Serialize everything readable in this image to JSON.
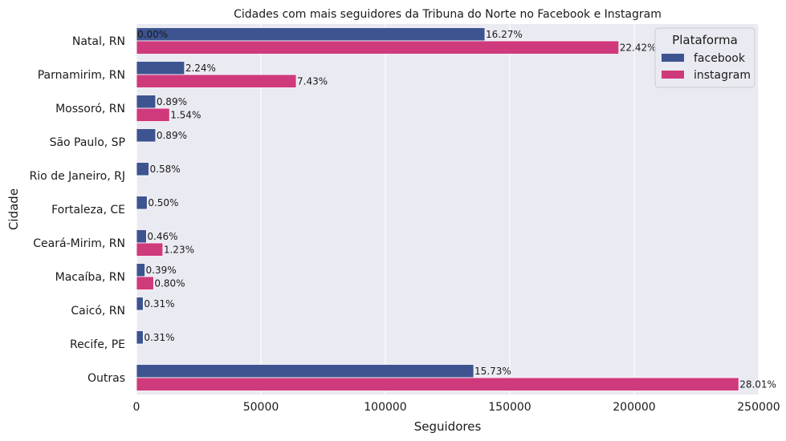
{
  "chart_data": {
    "type": "bar",
    "orientation": "horizontal",
    "title": "Cidades com mais seguidores da Tribuna do Norte no Facebook e Instagram",
    "xlabel": "Seguidores",
    "ylabel": "Cidade",
    "xlim": [
      0,
      250000
    ],
    "xticks": [
      0,
      50000,
      100000,
      150000,
      200000,
      250000
    ],
    "xtick_labels": [
      "0",
      "50000",
      "100000",
      "150000",
      "200000",
      "250000"
    ],
    "grid": true,
    "categories": [
      "Natal, RN",
      "Parnamirim, RN",
      "Mossoró, RN",
      "São Paulo, SP",
      "Rio de Janeiro, RJ",
      "Fortaleza, CE",
      "Ceará-Mirim, RN",
      "Macaíba, RN",
      "Caicó, RN",
      "Recife, PE",
      "Outras"
    ],
    "series": [
      {
        "name": "facebook",
        "color": "#3d5491",
        "values": [
          140000,
          19300,
          7700,
          7700,
          5000,
          4300,
          4000,
          3400,
          2700,
          2700,
          135500
        ],
        "labels": [
          "16.27%",
          "2.24%",
          "0.89%",
          "0.89%",
          "0.58%",
          "0.50%",
          "0.46%",
          "0.39%",
          "0.31%",
          "0.31%",
          "15.73%"
        ]
      },
      {
        "name": "instagram",
        "color": "#cf3a7c",
        "values": [
          193800,
          64200,
          13300,
          0,
          0,
          0,
          10600,
          6900,
          0,
          0,
          242000
        ],
        "labels": [
          "22.42%",
          "7.43%",
          "1.54%",
          null,
          null,
          null,
          "1.23%",
          "0.80%",
          null,
          null,
          "28.01%"
        ]
      }
    ],
    "extra_annotations": [
      {
        "text": "0.00%",
        "category": "Natal, RN",
        "x": 0
      }
    ],
    "legend": {
      "title": "Plataforma",
      "position": "top-right"
    },
    "background": "#eaeaf2"
  }
}
